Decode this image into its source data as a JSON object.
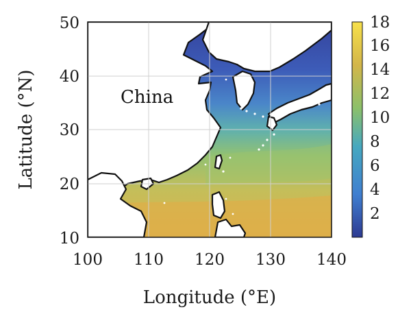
{
  "map": {
    "region_label": "China",
    "x_axis": {
      "title": "Longitude (°E)",
      "ticks": [
        "100",
        "110",
        "120",
        "130",
        "140"
      ]
    },
    "y_axis": {
      "title": "Latitude (°N)",
      "ticks": [
        "10",
        "20",
        "30",
        "40",
        "50"
      ]
    },
    "colorbar": {
      "ticks": [
        "2",
        "4",
        "6",
        "8",
        "10",
        "12",
        "14",
        "16",
        "18"
      ],
      "range": [
        0,
        18
      ],
      "colors": [
        "#2d3a92",
        "#3f7fd0",
        "#46a8c0",
        "#8cc06a",
        "#d3b64a",
        "#f7e04a"
      ]
    }
  }
}
